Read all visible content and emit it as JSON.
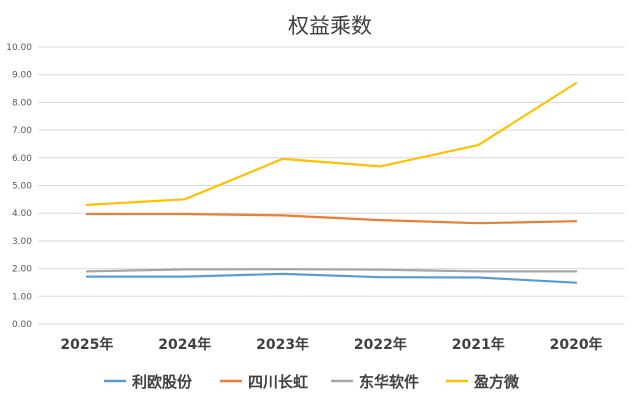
{
  "chart_data": {
    "type": "line",
    "title": "权益乘数",
    "xlabel": "",
    "ylabel": "",
    "categories": [
      "2025年",
      "2024年",
      "2023年",
      "2022年",
      "2021年",
      "2020年"
    ],
    "ylim": [
      0,
      10
    ],
    "yticks": [
      "0.00",
      "1.00",
      "2.00",
      "3.00",
      "4.00",
      "5.00",
      "6.00",
      "7.00",
      "8.00",
      "9.00",
      "10.00"
    ],
    "grid": true,
    "legend_position": "bottom",
    "series": [
      {
        "name": "利欧股份",
        "color": "#5b9bd5",
        "values": [
          1.71,
          1.71,
          1.81,
          1.69,
          1.68,
          1.49
        ]
      },
      {
        "name": "四川长虹",
        "color": "#ed7d31",
        "values": [
          3.97,
          3.97,
          3.92,
          3.75,
          3.64,
          3.71
        ]
      },
      {
        "name": "东华软件",
        "color": "#a5a5a5",
        "values": [
          1.9,
          1.97,
          1.98,
          1.96,
          1.9,
          1.9
        ]
      },
      {
        "name": "盈方微",
        "color": "#ffc000",
        "values": [
          4.3,
          4.5,
          5.96,
          5.69,
          6.46,
          8.7
        ]
      }
    ]
  }
}
